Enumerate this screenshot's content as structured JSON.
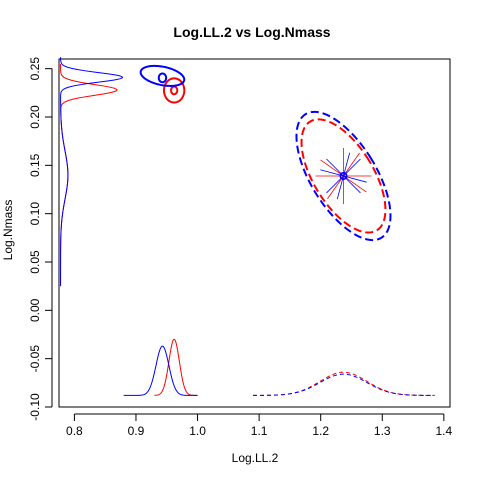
{
  "chart_data": {
    "type": "scatter",
    "title": "Log.LL.2 vs Log.Nmass",
    "xlabel": "Log.LL.2",
    "ylabel": "Log.Nmass",
    "xlim": [
      0.775,
      1.41
    ],
    "ylim": [
      -0.1,
      0.26
    ],
    "x_ticks": [
      "0.8",
      "0.9",
      "1.0",
      "1.1",
      "1.2",
      "1.3",
      "1.4"
    ],
    "y_ticks": [
      "-0.10",
      "-0.05",
      "0.00",
      "0.05",
      "0.10",
      "0.15",
      "0.20",
      "0.25"
    ],
    "grid": false,
    "legend": "none",
    "colors": {
      "red": "#ff0000",
      "blue": "#0000ff",
      "axis": "#000000"
    },
    "series": [
      {
        "color": "red",
        "centers": [
          [
            0.962,
            0.2275
          ]
        ],
        "solid_ellipses": [
          {
            "cx": 0.962,
            "cy": 0.2275,
            "rx": 0.0165,
            "ry": 0.0125,
            "rot": 0
          }
        ],
        "small_markers": [
          {
            "cx": 0.962,
            "cy": 0.2275,
            "rx": 0.005,
            "ry": 0.004
          }
        ],
        "dashed_ellipse": {
          "cx": 1.237,
          "cy": 0.139,
          "rx": 0.0485,
          "ry": 0.066,
          "rot": 0.55
        },
        "cross_center": [
          1.237,
          0.139
        ],
        "x_density_solid": {
          "mean": 0.962,
          "sd": 0.0085,
          "peak": 0.058,
          "from": 0.93,
          "to": 1.0
        },
        "x_density_dashed": {
          "mean": 1.237,
          "sd": 0.038,
          "peak": 0.024,
          "from": 1.09,
          "to": 1.385
        },
        "y_density": {
          "from": 0.025,
          "to": 0.255,
          "components": [
            {
              "mean": 0.228,
              "sd": 0.0055,
              "weight": 0.092
            },
            {
              "mean": 0.14,
              "sd": 0.025,
              "weight": 0.012
            }
          ]
        }
      },
      {
        "color": "blue",
        "centers": [
          [
            0.943,
            0.2405
          ]
        ],
        "solid_ellipses": [
          {
            "cx": 0.943,
            "cy": 0.2425,
            "rx": 0.036,
            "ry": 0.0095,
            "rot": -0.2
          }
        ],
        "small_markers": [
          {
            "cx": 0.943,
            "cy": 0.2405,
            "rx": 0.006,
            "ry": 0.0045
          }
        ],
        "dashed_ellipse": {
          "cx": 1.237,
          "cy": 0.139,
          "rx": 0.053,
          "ry": 0.075,
          "rot": 0.55
        },
        "cross_center": [
          1.237,
          0.139
        ],
        "x_density_solid": {
          "mean": 0.943,
          "sd": 0.0105,
          "peak": 0.051,
          "from": 0.88,
          "to": 1.0
        },
        "x_density_dashed": {
          "mean": 1.237,
          "sd": 0.038,
          "peak": 0.022,
          "from": 1.09,
          "to": 1.385
        },
        "y_density": {
          "from": 0.025,
          "to": 0.262,
          "components": [
            {
              "mean": 0.241,
              "sd": 0.005,
              "weight": 0.101
            },
            {
              "mean": 0.14,
              "sd": 0.025,
              "weight": 0.012
            }
          ]
        }
      }
    ]
  }
}
